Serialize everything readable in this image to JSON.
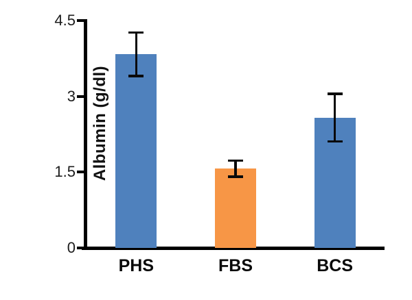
{
  "chart_data": {
    "type": "bar",
    "title": "",
    "xlabel": "",
    "ylabel": "Albumin (g/dl)",
    "categories": [
      "PHS",
      "FBS",
      "BCS"
    ],
    "values": [
      3.83,
      1.57,
      2.58
    ],
    "errors": [
      0.43,
      0.16,
      0.47
    ],
    "bar_colors": [
      "#4F81BD",
      "#F79646",
      "#4F81BD"
    ],
    "ylim": [
      0,
      4.5
    ],
    "yticks": [
      0,
      1.5,
      3,
      4.5
    ],
    "ytick_labels": [
      "0",
      "1.5",
      "3",
      "4.5"
    ],
    "grid": false,
    "legend": null,
    "error_bar_color": "#0a0a0a",
    "axis_color": "#000000",
    "background_color": "#ffffff"
  }
}
